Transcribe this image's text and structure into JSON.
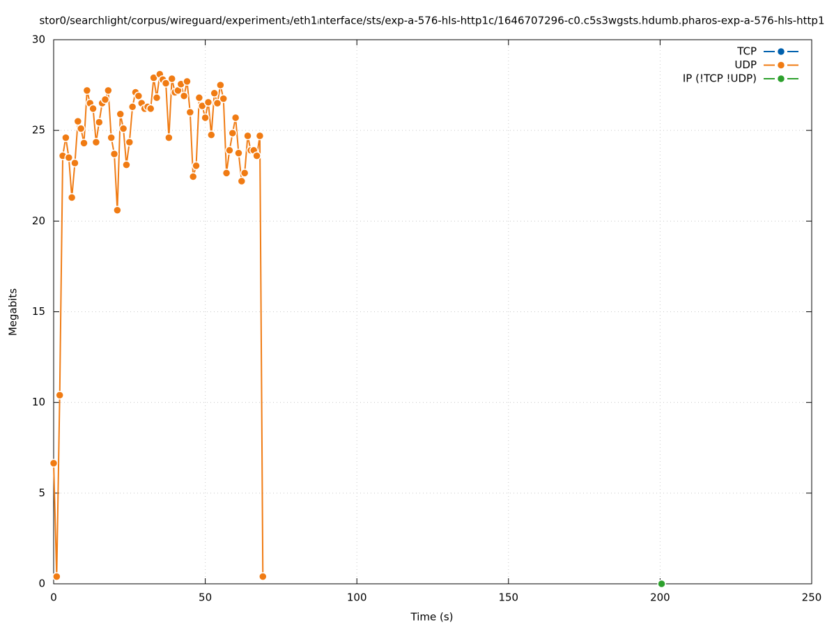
{
  "chart_data": {
    "type": "line",
    "title": "stor0/searchlight/corpus/wireguard/experiment₃/eth1ᵢnterface/sts/exp-a-576-hls-http1c/1646707296-c0.c5s3wgsts.hdumb.pharos-exp-a-576-hls-http1",
    "x_label": "Time (s)",
    "y_label": "Megabits",
    "xlim": [
      0,
      250
    ],
    "xticks": [
      0,
      50,
      100,
      150,
      200,
      250
    ],
    "ylim": [
      0,
      30
    ],
    "yticks": [
      0,
      5,
      10,
      15,
      20,
      25,
      30
    ],
    "grid": true,
    "legend": "upper right",
    "series": [
      {
        "name": "TCP",
        "color": "#0060ad",
        "x": [],
        "values": []
      },
      {
        "name": "UDP",
        "color": "#f07b13",
        "x": [
          0,
          1,
          2,
          3,
          4,
          5,
          6,
          7,
          8,
          9,
          10,
          11,
          12,
          13,
          14,
          15,
          16,
          17,
          18,
          19,
          20,
          21,
          22,
          23,
          24,
          25,
          26,
          27,
          28,
          29,
          30,
          31,
          32,
          33,
          34,
          35,
          36,
          37,
          38,
          39,
          40,
          41,
          42,
          43,
          44,
          45,
          46,
          47,
          48,
          49,
          50,
          51,
          52,
          53,
          54,
          55,
          56,
          57,
          58,
          59,
          60,
          61,
          62,
          63,
          64,
          65,
          66,
          67,
          68,
          69
        ],
        "values": [
          6.65,
          0.4,
          10.4,
          23.6,
          24.6,
          23.5,
          21.3,
          23.2,
          25.5,
          25.1,
          24.3,
          27.2,
          26.5,
          26.2,
          24.35,
          25.45,
          26.5,
          26.7,
          27.2,
          24.6,
          23.7,
          20.6,
          25.9,
          25.1,
          23.1,
          24.35,
          26.3,
          27.1,
          26.9,
          26.5,
          26.2,
          26.3,
          26.2,
          27.9,
          26.8,
          28.1,
          27.8,
          27.6,
          24.6,
          27.85,
          27.1,
          27.2,
          27.55,
          26.9,
          27.7,
          26.0,
          22.45,
          23.05,
          26.8,
          26.35,
          25.7,
          26.55,
          24.75,
          27.05,
          26.5,
          27.5,
          26.75,
          22.65,
          23.9,
          24.85,
          25.7,
          23.75,
          22.2,
          22.65,
          24.7,
          23.9,
          23.9,
          23.6,
          24.7,
          0.4
        ]
      },
      {
        "name": "IP (!TCP  !UDP)",
        "color": "#2ca02c",
        "x": [
          200.5
        ],
        "values": [
          0
        ]
      }
    ]
  }
}
